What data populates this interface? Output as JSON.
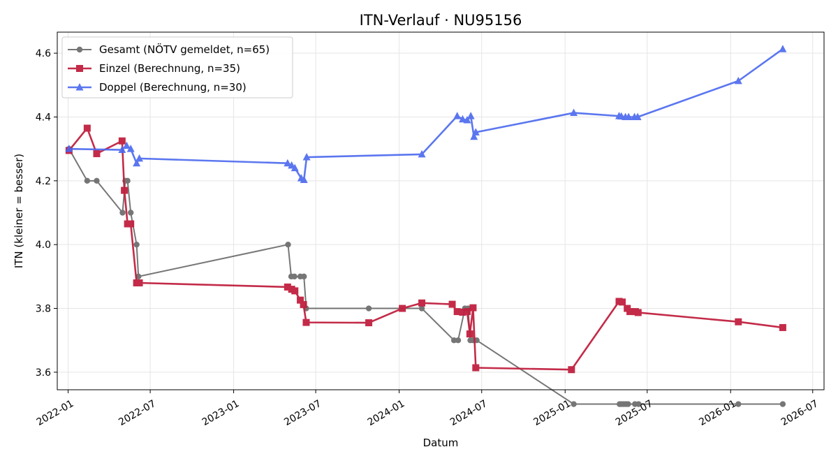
{
  "chart_data": {
    "type": "line",
    "title": "ITN-Verlauf · NU95156",
    "xlabel": "Datum",
    "ylabel": "ITN  (kleiner = besser)",
    "x_axis_type": "date",
    "xlim": [
      "2021-12-08",
      "2026-07-26"
    ],
    "ylim": [
      3.545,
      4.666
    ],
    "x_ticks": [
      "2022-01-01",
      "2022-07-01",
      "2023-01-01",
      "2023-07-01",
      "2024-01-01",
      "2024-07-01",
      "2025-01-01",
      "2025-07-01",
      "2026-01-01",
      "2026-07-01"
    ],
    "x_tick_labels": [
      "2022-01",
      "2022-07",
      "2023-01",
      "2023-07",
      "2024-01",
      "2024-07",
      "2025-01",
      "2025-07",
      "2026-01",
      "2026-07"
    ],
    "y_ticks": [
      3.6,
      3.8,
      4.0,
      4.2,
      4.4,
      4.6
    ],
    "y_tick_labels": [
      "3.6",
      "3.8",
      "4.0",
      "4.2",
      "4.4",
      "4.6"
    ],
    "grid": true,
    "legend_position": "top-left",
    "series": [
      {
        "name": "Gesamt (NÖTV gemeldet, n=65)",
        "color": "#555555",
        "marker": "circle",
        "x": [
          "2022-01-03",
          "2022-02-12",
          "2022-03-05",
          "2022-05-01",
          "2022-05-07",
          "2022-05-12",
          "2022-05-19",
          "2022-06-01",
          "2022-06-05",
          "2023-05-01",
          "2023-05-08",
          "2023-05-15",
          "2023-05-28",
          "2023-06-05",
          "2023-06-10",
          "2023-10-26",
          "2024-02-20",
          "2024-05-01",
          "2024-05-10",
          "2024-05-25",
          "2024-06-01",
          "2024-06-06",
          "2024-06-12",
          "2024-06-20",
          "2025-01-20",
          "2025-05-01",
          "2025-05-05",
          "2025-05-10",
          "2025-05-15",
          "2025-05-20",
          "2025-06-04",
          "2025-06-12",
          "2026-01-18",
          "2026-04-26"
        ],
        "y": [
          4.3,
          4.2,
          4.2,
          4.1,
          4.2,
          4.2,
          4.1,
          4.0,
          3.9,
          4.0,
          3.9,
          3.9,
          3.9,
          3.9,
          3.8,
          3.8,
          3.8,
          3.7,
          3.7,
          3.8,
          3.8,
          3.7,
          3.7,
          3.7,
          3.5,
          3.5,
          3.5,
          3.5,
          3.5,
          3.5,
          3.5,
          3.5,
          3.5,
          3.5
        ]
      },
      {
        "name": "Einzel (Berechnung, n=35)",
        "color": "#c0203f",
        "marker": "square",
        "x": [
          "2022-01-03",
          "2022-02-12",
          "2022-03-05",
          "2022-04-30",
          "2022-05-05",
          "2022-05-12",
          "2022-05-19",
          "2022-06-01",
          "2022-06-07",
          "2023-04-30",
          "2023-05-09",
          "2023-05-16",
          "2023-05-28",
          "2023-06-04",
          "2023-06-10",
          "2023-10-26",
          "2024-01-08",
          "2024-02-20",
          "2024-04-27",
          "2024-05-08",
          "2024-05-20",
          "2024-05-30",
          "2024-06-05",
          "2024-06-12",
          "2024-06-18",
          "2025-01-15",
          "2025-04-30",
          "2025-05-07",
          "2025-05-18",
          "2025-05-24",
          "2025-06-05",
          "2025-06-11",
          "2026-01-18",
          "2026-04-26"
        ],
        "y": [
          4.295,
          4.365,
          4.285,
          4.325,
          4.17,
          4.065,
          4.065,
          3.88,
          3.88,
          3.867,
          3.86,
          3.855,
          3.826,
          3.812,
          3.756,
          3.755,
          3.8,
          3.817,
          3.813,
          3.79,
          3.788,
          3.79,
          3.72,
          3.802,
          3.614,
          3.608,
          3.822,
          3.82,
          3.8,
          3.79,
          3.79,
          3.787,
          3.758,
          3.74
        ]
      },
      {
        "name": "Doppel (Berechnung, n=30)",
        "color": "#4a68ee",
        "marker": "triangle",
        "x": [
          "2022-01-03",
          "2022-04-30",
          "2022-05-10",
          "2022-05-19",
          "2022-06-01",
          "2022-06-07",
          "2023-04-30",
          "2023-05-09",
          "2023-05-16",
          "2023-05-30",
          "2023-06-05",
          "2023-06-11",
          "2024-02-20",
          "2024-05-08",
          "2024-05-20",
          "2024-05-30",
          "2024-06-07",
          "2024-06-14",
          "2024-06-18",
          "2025-01-20",
          "2025-04-30",
          "2025-05-05",
          "2025-05-14",
          "2025-05-21",
          "2025-06-03",
          "2025-06-10",
          "2026-01-18",
          "2026-04-26"
        ],
        "y": [
          4.3,
          4.297,
          4.31,
          4.3,
          4.255,
          4.27,
          4.255,
          4.248,
          4.24,
          4.208,
          4.203,
          4.274,
          4.283,
          4.403,
          4.393,
          4.39,
          4.403,
          4.338,
          4.352,
          4.413,
          4.403,
          4.402,
          4.4,
          4.4,
          4.4,
          4.4,
          4.513,
          4.613
        ]
      }
    ]
  }
}
